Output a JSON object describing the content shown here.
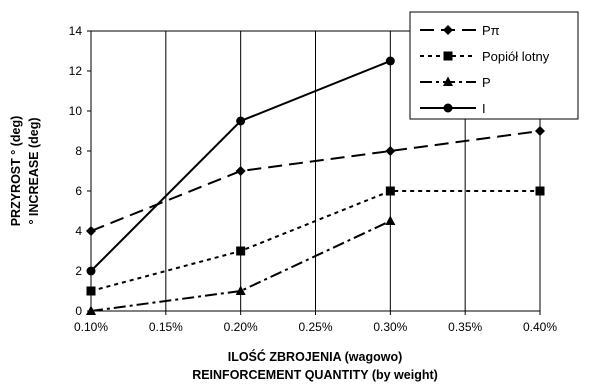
{
  "chart_data": {
    "type": "line",
    "x": [
      0.1,
      0.2,
      0.3,
      0.4
    ],
    "xlim": [
      0.1,
      0.4
    ],
    "ylim": [
      0,
      14
    ],
    "x_ticks": [
      "0.10%",
      "0.15%",
      "0.20%",
      "0.25%",
      "0.30%",
      "0.35%",
      "0.40%"
    ],
    "y_ticks": [
      "0",
      "2",
      "4",
      "6",
      "8",
      "10",
      "12",
      "14"
    ],
    "xlabel": "ILOŚĆ ZBROJENIA (wagowo)",
    "xlabel2": "REINFORCEMENT QUANTITY (by weight)",
    "ylabel": "PRZYROST ° (deg)",
    "ylabel2": "° INCREASE (deg)",
    "grid": "vertical",
    "legend_position": "top-right",
    "series": [
      {
        "name": "Pπ",
        "marker": "diamond",
        "dash": "long-dash",
        "points": [
          [
            0.1,
            4
          ],
          [
            0.2,
            7
          ],
          [
            0.3,
            8
          ],
          [
            0.4,
            9
          ]
        ]
      },
      {
        "name": "Popiół lotny",
        "marker": "square",
        "dash": "short-dash",
        "points": [
          [
            0.1,
            1
          ],
          [
            0.2,
            3
          ],
          [
            0.3,
            6
          ],
          [
            0.4,
            6
          ]
        ]
      },
      {
        "name": "P",
        "marker": "triangle",
        "dash": "dash-dot",
        "points": [
          [
            0.1,
            0
          ],
          [
            0.2,
            1
          ],
          [
            0.3,
            4.5
          ]
        ]
      },
      {
        "name": "I",
        "marker": "circle",
        "dash": "solid",
        "points": [
          [
            0.1,
            2
          ],
          [
            0.2,
            9.5
          ],
          [
            0.3,
            12.5
          ]
        ]
      }
    ]
  }
}
